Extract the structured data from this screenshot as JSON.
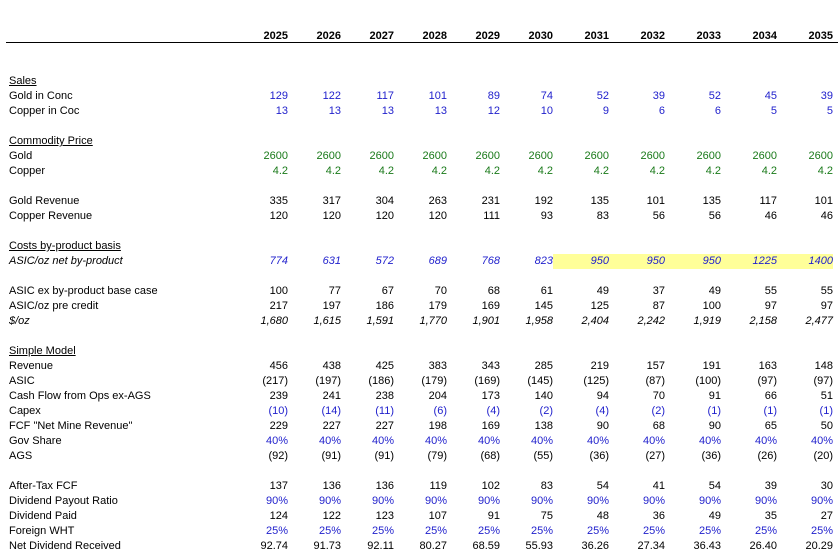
{
  "years": [
    "2025",
    "2026",
    "2027",
    "2028",
    "2029",
    "2030",
    "2031",
    "2032",
    "2033",
    "2034",
    "2035"
  ],
  "colors": {
    "input_blue": "#1f1fcc",
    "price_green": "#1a7a1a",
    "black": "#000000",
    "highlight_yellow": "#ffff99"
  },
  "rows": [
    {
      "label": "Sales",
      "header": true
    },
    {
      "label": "Gold in Conc",
      "color": "input_blue",
      "values": [
        "129",
        "122",
        "117",
        "101",
        "89",
        "74",
        "52",
        "39",
        "52",
        "45",
        "39"
      ]
    },
    {
      "label": "Copper in Coc",
      "color": "input_blue",
      "values": [
        "13",
        "13",
        "13",
        "13",
        "12",
        "10",
        "9",
        "6",
        "6",
        "5",
        "5"
      ]
    },
    {
      "label": "Commodity Price",
      "header": true
    },
    {
      "label": "Gold",
      "color": "price_green",
      "values": [
        "2600",
        "2600",
        "2600",
        "2600",
        "2600",
        "2600",
        "2600",
        "2600",
        "2600",
        "2600",
        "2600"
      ]
    },
    {
      "label": "Copper",
      "color": "price_green",
      "values": [
        "4.2",
        "4.2",
        "4.2",
        "4.2",
        "4.2",
        "4.2",
        "4.2",
        "4.2",
        "4.2",
        "4.2",
        "4.2"
      ]
    },
    {
      "label": "Gold Revenue",
      "values": [
        "335",
        "317",
        "304",
        "263",
        "231",
        "192",
        "135",
        "101",
        "135",
        "117",
        "101"
      ]
    },
    {
      "label": "Copper Revenue",
      "values": [
        "120",
        "120",
        "120",
        "120",
        "111",
        "93",
        "83",
        "56",
        "56",
        "46",
        "46"
      ]
    },
    {
      "label": "Costs by-product basis",
      "header": true
    },
    {
      "label": "ASIC/oz net by-product",
      "italic": true,
      "color": "input_blue",
      "highlight_from": 6,
      "values": [
        "774",
        "631",
        "572",
        "689",
        "768",
        "823",
        "950",
        "950",
        "950",
        "1225",
        "1400"
      ]
    },
    {
      "label": "ASIC ex by-product base case",
      "values": [
        "100",
        "77",
        "67",
        "70",
        "68",
        "61",
        "49",
        "37",
        "49",
        "55",
        "55"
      ]
    },
    {
      "label": "ASIC/oz pre credit",
      "values": [
        "217",
        "197",
        "186",
        "179",
        "169",
        "145",
        "125",
        "87",
        "100",
        "97",
        "97"
      ]
    },
    {
      "label": "$/oz",
      "italic": true,
      "values": [
        "1,680",
        "1,615",
        "1,591",
        "1,770",
        "1,901",
        "1,958",
        "2,404",
        "2,242",
        "1,919",
        "2,158",
        "2,477"
      ]
    },
    {
      "label": "Simple Model",
      "header": true
    },
    {
      "label": "Revenue",
      "values": [
        "456",
        "438",
        "425",
        "383",
        "343",
        "285",
        "219",
        "157",
        "191",
        "163",
        "148"
      ]
    },
    {
      "label": "ASIC",
      "values": [
        "(217)",
        "(197)",
        "(186)",
        "(179)",
        "(169)",
        "(145)",
        "(125)",
        "(87)",
        "(100)",
        "(97)",
        "(97)"
      ]
    },
    {
      "label": "Cash Flow from Ops ex-AGS",
      "values": [
        "239",
        "241",
        "238",
        "204",
        "173",
        "140",
        "94",
        "70",
        "91",
        "66",
        "51"
      ]
    },
    {
      "label": "Capex",
      "color": "input_blue",
      "values": [
        "(10)",
        "(14)",
        "(11)",
        "(6)",
        "(4)",
        "(2)",
        "(4)",
        "(2)",
        "(1)",
        "(1)",
        "(1)"
      ]
    },
    {
      "label": "FCF \"Net Mine Revenue\"",
      "values": [
        "229",
        "227",
        "227",
        "198",
        "169",
        "138",
        "90",
        "68",
        "90",
        "65",
        "50"
      ]
    },
    {
      "label": "Gov Share",
      "color": "input_blue",
      "values": [
        "40%",
        "40%",
        "40%",
        "40%",
        "40%",
        "40%",
        "40%",
        "40%",
        "40%",
        "40%",
        "40%"
      ]
    },
    {
      "label": "AGS",
      "values": [
        "(92)",
        "(91)",
        "(91)",
        "(79)",
        "(68)",
        "(55)",
        "(36)",
        "(27)",
        "(36)",
        "(26)",
        "(20)"
      ]
    },
    {
      "label": "After-Tax FCF",
      "values": [
        "137",
        "136",
        "136",
        "119",
        "102",
        "83",
        "54",
        "41",
        "54",
        "39",
        "30"
      ]
    },
    {
      "label": "Dividend Payout Ratio",
      "color": "input_blue",
      "values": [
        "90%",
        "90%",
        "90%",
        "90%",
        "90%",
        "90%",
        "90%",
        "90%",
        "90%",
        "90%",
        "90%"
      ]
    },
    {
      "label": "Dividend Paid",
      "values": [
        "124",
        "122",
        "123",
        "107",
        "91",
        "75",
        "48",
        "36",
        "49",
        "35",
        "27"
      ]
    },
    {
      "label": "Foreign WHT",
      "color": "input_blue",
      "values": [
        "25%",
        "25%",
        "25%",
        "25%",
        "25%",
        "25%",
        "25%",
        "25%",
        "25%",
        "25%",
        "25%"
      ]
    },
    {
      "label": "Net Dividend Received",
      "values": [
        "92.74",
        "91.73",
        "92.11",
        "80.27",
        "68.59",
        "55.93",
        "36.26",
        "27.34",
        "36.43",
        "26.40",
        "20.29"
      ]
    }
  ]
}
